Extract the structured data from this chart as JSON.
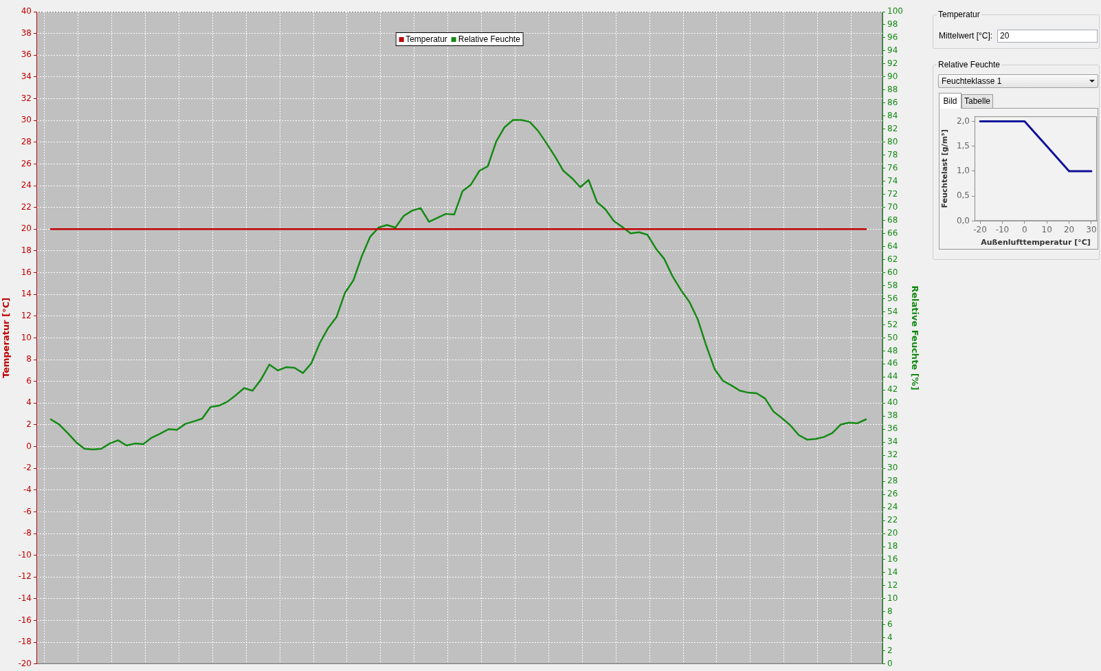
{
  "chart_data": [
    {
      "type": "line",
      "categories": [
        null,
        null,
        null,
        null,
        null,
        null,
        null,
        null,
        null,
        null,
        null,
        null,
        null,
        null,
        null,
        null,
        null,
        null,
        null,
        null,
        null,
        null,
        null,
        null,
        null,
        null,
        null,
        null,
        null,
        null,
        null,
        null,
        null,
        null,
        null,
        null,
        null,
        null,
        null,
        null,
        null,
        null,
        null,
        null,
        null,
        null,
        null,
        null,
        null,
        null,
        null,
        null,
        null,
        null,
        null,
        null,
        null,
        null,
        null,
        null,
        null,
        null,
        null,
        null,
        null,
        null,
        null,
        null,
        null,
        null,
        null,
        null,
        null,
        null,
        null,
        null,
        null,
        null,
        null,
        null,
        null,
        null,
        null,
        null,
        null,
        null,
        null,
        null,
        null,
        null,
        null,
        null,
        null,
        null,
        null,
        null,
        null,
        null
      ],
      "series": [
        {
          "name": "Temperatur",
          "color": "#c00000",
          "values": [
            20,
            20,
            20,
            20,
            20,
            20,
            20,
            20,
            20,
            20,
            20,
            20,
            20,
            20,
            20,
            20,
            20,
            20,
            20,
            20,
            20,
            20,
            20,
            20,
            20,
            20,
            20,
            20,
            20,
            20,
            20,
            20,
            20,
            20,
            20,
            20,
            20,
            20,
            20,
            20,
            20,
            20,
            20,
            20,
            20,
            20,
            20,
            20,
            20,
            20,
            20,
            20,
            20,
            20,
            20,
            20,
            20,
            20,
            20,
            20,
            20,
            20,
            20,
            20,
            20,
            20,
            20,
            20,
            20,
            20,
            20,
            20,
            20,
            20,
            20,
            20,
            20,
            20,
            20,
            20,
            20,
            20,
            20,
            20,
            20,
            20,
            20,
            20,
            20,
            20,
            20,
            20,
            20,
            20,
            20,
            20,
            20,
            20
          ]
        },
        {
          "name": "Relative Feuchte",
          "color": "#138a13",
          "axis": "y2",
          "values": [
            37.5,
            36.7,
            35.4,
            34.0,
            33.0,
            32.9,
            33.0,
            33.8,
            34.3,
            33.5,
            33.8,
            33.7,
            34.7,
            35.3,
            36.0,
            35.9,
            36.8,
            37.2,
            37.6,
            39.4,
            39.6,
            40.2,
            41.2,
            42.3,
            41.9,
            43.6,
            45.9,
            45.0,
            45.5,
            45.4,
            44.6,
            46.1,
            49.2,
            51.5,
            53.2,
            56.9,
            58.8,
            62.5,
            65.5,
            66.9,
            67.3,
            66.9,
            68.7,
            69.5,
            69.9,
            67.8,
            68.4,
            69.0,
            68.9,
            72.5,
            73.5,
            75.6,
            76.3,
            80.1,
            82.3,
            83.4,
            83.4,
            83.1,
            81.7,
            79.8,
            77.8,
            75.6,
            74.5,
            73.1,
            74.2,
            70.8,
            69.7,
            67.9,
            67.0,
            66.0,
            66.2,
            65.8,
            63.7,
            62.1,
            59.4,
            57.3,
            55.5,
            52.8,
            48.8,
            45.2,
            43.4,
            42.7,
            41.9,
            41.6,
            41.5,
            40.7,
            38.7,
            37.7,
            36.6,
            35.1,
            34.4,
            34.5,
            34.8,
            35.4,
            36.7,
            37.0,
            36.9,
            37.5
          ]
        }
      ],
      "ylabel": "Temperatur [°C]",
      "y2label": "Relative Feuchte [%]",
      "ylim": [
        -20,
        40
      ],
      "yticks": [
        -20,
        -18,
        -16,
        -14,
        -12,
        -10,
        -8,
        -6,
        -4,
        -2,
        0,
        2,
        4,
        6,
        8,
        10,
        12,
        14,
        16,
        18,
        20,
        22,
        24,
        26,
        28,
        30,
        32,
        34,
        36,
        38,
        40
      ],
      "y2lim": [
        0,
        100
      ],
      "y2ticks": [
        0,
        2,
        4,
        6,
        8,
        10,
        12,
        14,
        16,
        18,
        20,
        22,
        24,
        26,
        28,
        30,
        32,
        34,
        36,
        38,
        40,
        42,
        44,
        46,
        48,
        50,
        52,
        54,
        56,
        58,
        60,
        62,
        64,
        66,
        68,
        70,
        72,
        74,
        76,
        78,
        80,
        82,
        84,
        86,
        88,
        90,
        92,
        94,
        96,
        98,
        100
      ],
      "grid": true,
      "legend": "top"
    },
    {
      "type": "other",
      "title": "Temperatur",
      "annotations": [
        "Mittelwert [°C]:",
        "20"
      ]
    },
    {
      "type": "other",
      "title": "Relative Feuchte",
      "annotations": [
        "Feuchteklasse 1",
        "Bild",
        "Tabelle"
      ]
    },
    {
      "type": "line",
      "x": [
        -20,
        0,
        20,
        30
      ],
      "values": [
        2.0,
        2.0,
        1.0,
        1.0
      ],
      "color": "#10109a",
      "xlabel": "Außenlufttemperatur [°C]",
      "ylabel": "Feuchtelast [g/m³]",
      "xlim": [
        -22.5,
        32.5
      ],
      "ylim": [
        0,
        2.1
      ],
      "xticks": [
        -20,
        -10,
        0,
        10,
        20,
        30
      ],
      "yticks": [
        {
          "value": 0,
          "label": "0,0"
        },
        {
          "value": 0.5,
          "label": "0,5"
        },
        {
          "value": 1,
          "label": "1,0"
        },
        {
          "value": 1.5,
          "label": "1,5"
        },
        {
          "value": 2,
          "label": "2,0"
        }
      ]
    }
  ]
}
